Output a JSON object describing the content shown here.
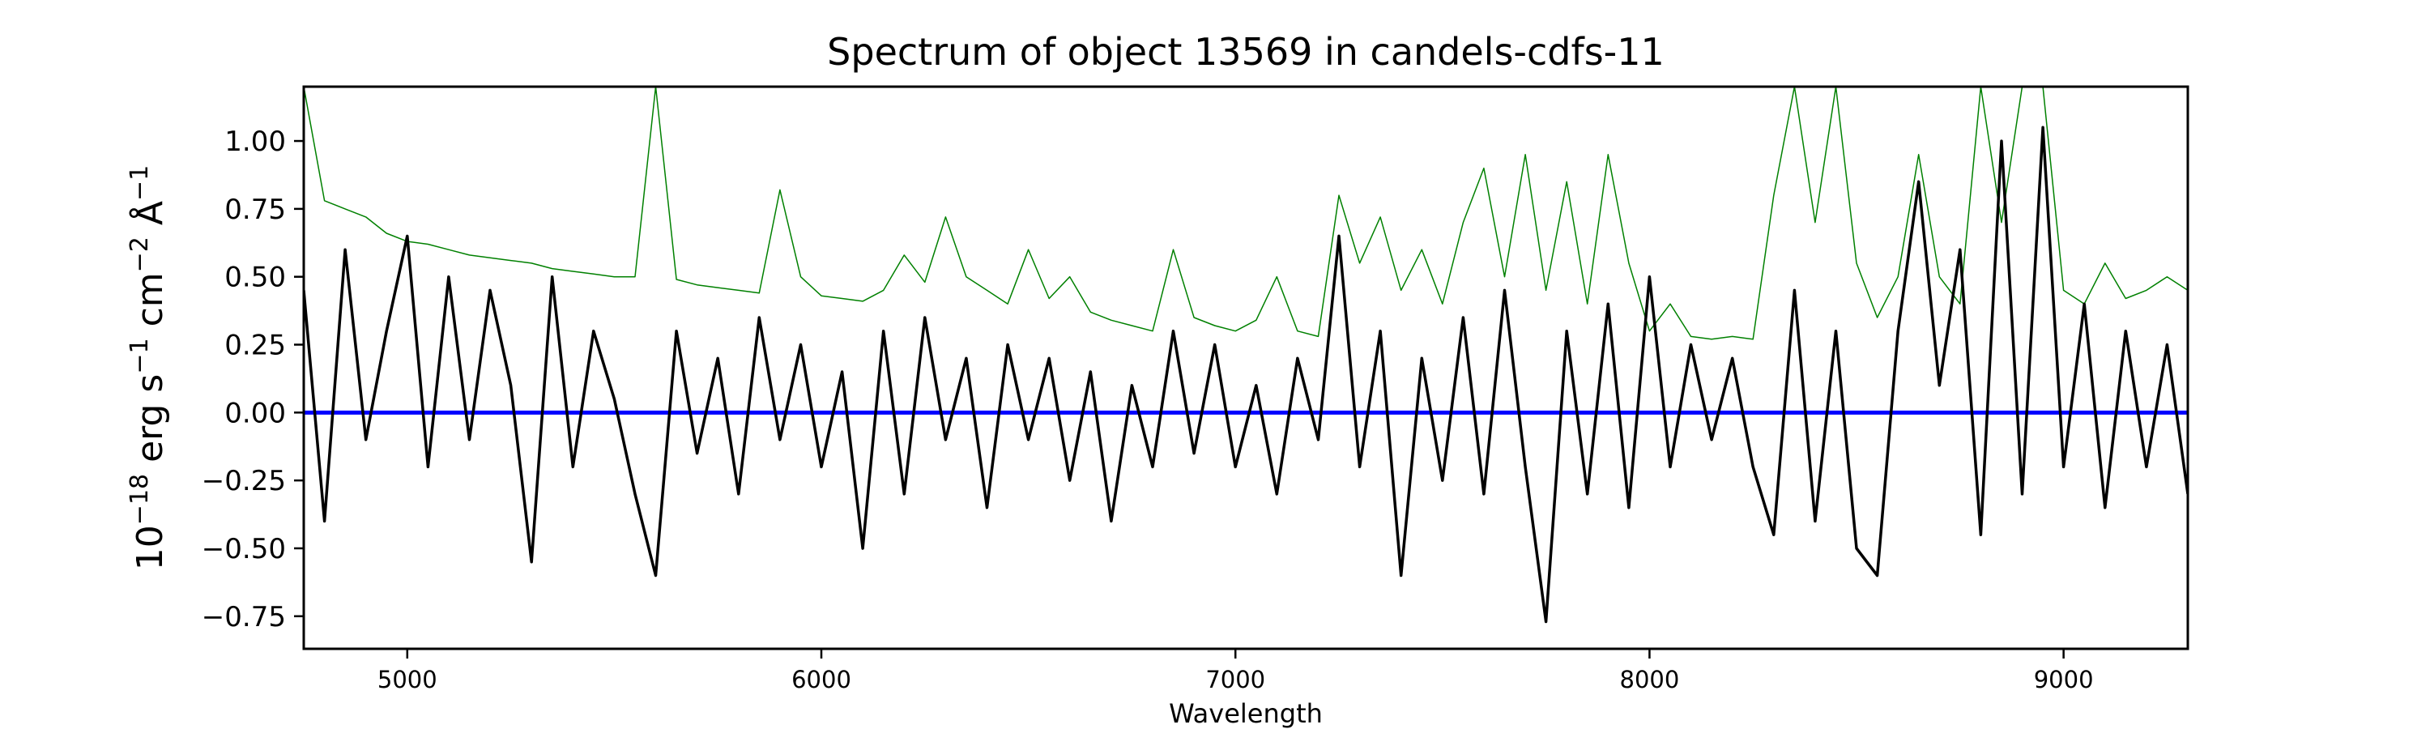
{
  "chart_data": {
    "type": "line",
    "title": "Spectrum of object 13569 in candels-cdfs-11",
    "xlabel": "Wavelength",
    "ylabel": {
      "base": "10",
      "exp": "−18",
      "units": [
        [
          "erg s",
          "−1"
        ],
        [
          "cm",
          "−2"
        ],
        [
          "Å",
          "−1"
        ]
      ]
    },
    "xlim": [
      4750,
      9300
    ],
    "ylim": [
      -0.87,
      1.2
    ],
    "xticks": [
      5000,
      6000,
      7000,
      8000,
      9000
    ],
    "xtick_labels": [
      "5000",
      "6000",
      "7000",
      "8000",
      "9000"
    ],
    "yticks": [
      -0.75,
      -0.5,
      -0.25,
      0,
      0.25,
      0.5,
      0.75,
      1.0
    ],
    "ytick_labels": [
      "−0.75",
      "−0.50",
      "−0.25",
      "0.00",
      "0.25",
      "0.50",
      "0.75",
      "1.00"
    ],
    "grid": false,
    "x": [
      4750,
      4800,
      4850,
      4900,
      4950,
      5000,
      5050,
      5100,
      5150,
      5200,
      5250,
      5300,
      5350,
      5400,
      5450,
      5500,
      5550,
      5600,
      5650,
      5700,
      5750,
      5800,
      5850,
      5900,
      5950,
      6000,
      6050,
      6100,
      6150,
      6200,
      6250,
      6300,
      6350,
      6400,
      6450,
      6500,
      6550,
      6600,
      6650,
      6700,
      6750,
      6800,
      6850,
      6900,
      6950,
      7000,
      7050,
      7100,
      7150,
      7200,
      7250,
      7300,
      7350,
      7400,
      7450,
      7500,
      7550,
      7600,
      7650,
      7700,
      7750,
      7800,
      7850,
      7900,
      7950,
      8000,
      8050,
      8100,
      8150,
      8200,
      8250,
      8300,
      8350,
      8400,
      8450,
      8500,
      8550,
      8600,
      8650,
      8700,
      8750,
      8800,
      8850,
      8900,
      8950,
      9000,
      9050,
      9100,
      9150,
      9200,
      9250,
      9300
    ],
    "series": [
      {
        "color": "#008000",
        "role": "error",
        "values": [
          1.2,
          0.78,
          0.75,
          0.72,
          0.66,
          0.63,
          0.62,
          0.6,
          0.58,
          0.57,
          0.56,
          0.55,
          0.53,
          0.52,
          0.51,
          0.5,
          0.5,
          1.2,
          0.49,
          0.47,
          0.46,
          0.45,
          0.44,
          0.82,
          0.5,
          0.43,
          0.42,
          0.41,
          0.45,
          0.58,
          0.48,
          0.72,
          0.5,
          0.45,
          0.4,
          0.6,
          0.42,
          0.5,
          0.37,
          0.34,
          0.32,
          0.3,
          0.6,
          0.35,
          0.32,
          0.3,
          0.34,
          0.5,
          0.3,
          0.28,
          0.8,
          0.55,
          0.72,
          0.45,
          0.6,
          0.4,
          0.7,
          0.9,
          0.5,
          0.95,
          0.45,
          0.85,
          0.4,
          0.95,
          0.55,
          0.3,
          0.4,
          0.28,
          0.27,
          0.28,
          0.27,
          0.8,
          1.2,
          0.7,
          1.2,
          0.55,
          0.35,
          0.5,
          0.95,
          0.5,
          0.4,
          1.2,
          0.7,
          1.2,
          1.2,
          0.45,
          0.4,
          0.55,
          0.42,
          0.45,
          0.5,
          0.45
        ]
      },
      {
        "color": "#000000",
        "role": "flux",
        "values": [
          0.45,
          -0.4,
          0.6,
          -0.1,
          0.3,
          0.65,
          -0.2,
          0.5,
          -0.1,
          0.45,
          0.1,
          -0.55,
          0.5,
          -0.2,
          0.3,
          0.05,
          -0.3,
          -0.6,
          0.3,
          -0.15,
          0.2,
          -0.3,
          0.35,
          -0.1,
          0.25,
          -0.2,
          0.15,
          -0.5,
          0.3,
          -0.3,
          0.35,
          -0.1,
          0.2,
          -0.35,
          0.25,
          -0.1,
          0.2,
          -0.25,
          0.15,
          -0.4,
          0.1,
          -0.2,
          0.3,
          -0.15,
          0.25,
          -0.2,
          0.1,
          -0.3,
          0.2,
          -0.1,
          0.65,
          -0.2,
          0.3,
          -0.6,
          0.2,
          -0.25,
          0.35,
          -0.3,
          0.45,
          -0.2,
          -0.77,
          0.3,
          -0.3,
          0.4,
          -0.35,
          0.5,
          -0.2,
          0.25,
          -0.1,
          0.2,
          -0.2,
          -0.45,
          0.45,
          -0.4,
          0.3,
          -0.5,
          -0.6,
          0.3,
          0.85,
          0.1,
          0.6,
          -0.45,
          1.0,
          -0.3,
          1.05,
          -0.2,
          0.4,
          -0.35,
          0.3,
          -0.2,
          0.25,
          -0.3
        ]
      },
      {
        "color": "#0000ff",
        "role": "zero-line",
        "values": "constant 0"
      }
    ],
    "zero_line_value": 0
  }
}
